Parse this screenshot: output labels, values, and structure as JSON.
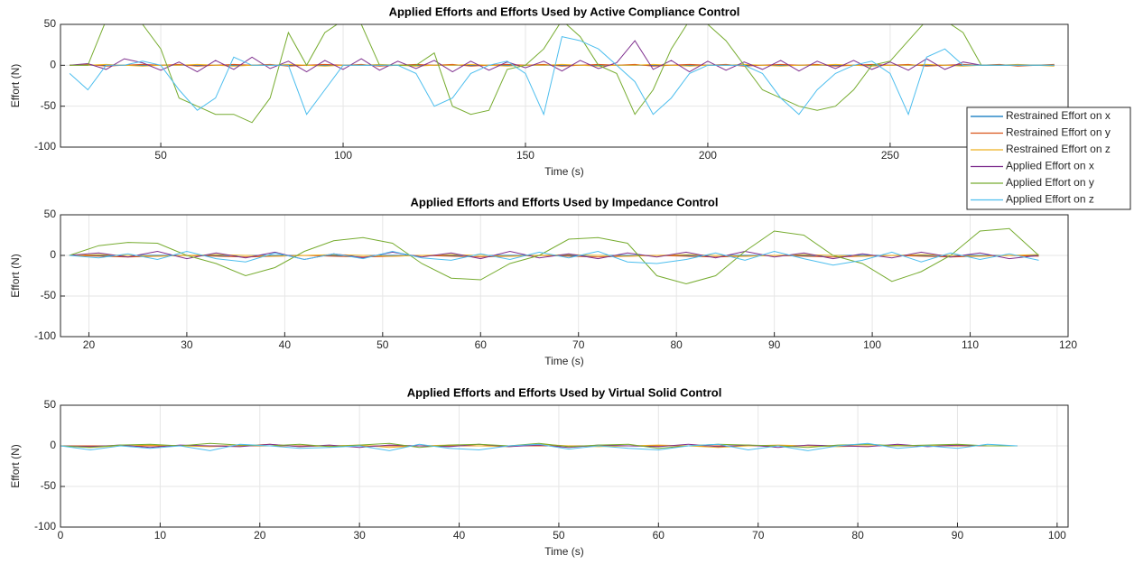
{
  "chart_data": [
    {
      "type": "line",
      "title": "Applied Efforts and Efforts Used by Active Compliance Control",
      "x_label": "Time (s)",
      "y_label": "Effort (N)",
      "xlim": [
        22.5,
        298.8
      ],
      "xticks": [
        50,
        100,
        150,
        200,
        250
      ],
      "ylim": [
        -100,
        50
      ],
      "yticks": [
        -100,
        -50,
        0,
        50
      ],
      "grid": true,
      "legend": "east",
      "x": [
        25,
        30,
        35,
        40,
        45,
        50,
        55,
        60,
        65,
        70,
        75,
        80,
        85,
        90,
        95,
        100,
        105,
        110,
        115,
        120,
        125,
        130,
        135,
        140,
        145,
        150,
        155,
        160,
        165,
        170,
        175,
        180,
        185,
        190,
        195,
        200,
        205,
        210,
        215,
        220,
        225,
        230,
        235,
        240,
        245,
        250,
        255,
        260,
        265,
        270,
        275,
        280,
        285,
        290,
        295
      ],
      "series": [
        {
          "name": "Restrained Effort on x",
          "color": "#0072BD",
          "values": [
            0,
            0,
            0,
            0,
            0,
            0,
            0,
            0,
            0,
            0,
            0,
            0,
            0,
            0,
            0,
            0,
            0,
            0,
            0,
            0,
            0,
            0,
            0,
            0,
            0,
            0,
            0,
            0,
            0,
            0,
            0,
            0,
            0,
            0,
            0,
            0,
            0,
            0,
            0,
            0,
            0,
            0,
            0,
            0,
            0,
            0,
            0,
            0,
            0,
            0,
            0,
            0,
            0,
            0,
            0
          ]
        },
        {
          "name": "Restrained Effort on y",
          "color": "#D95319",
          "values": [
            0,
            1,
            -1,
            0,
            1,
            0,
            1,
            -1,
            0,
            1,
            0,
            1,
            -1,
            0,
            1,
            0,
            1,
            -1,
            0,
            1,
            0,
            1,
            -1,
            0,
            1,
            0,
            1,
            -1,
            0,
            1,
            0,
            1,
            -1,
            0,
            1,
            0,
            1,
            -1,
            0,
            1,
            0,
            1,
            -1,
            0,
            1,
            0,
            1,
            -1,
            0,
            1,
            0,
            1,
            -1,
            0,
            1
          ]
        },
        {
          "name": "Restrained Effort on z",
          "color": "#EDB120",
          "values": [
            0,
            0,
            1,
            0,
            -1,
            0,
            0,
            1,
            0,
            -1,
            0,
            0,
            1,
            0,
            -1,
            0,
            0,
            1,
            0,
            -1,
            0,
            0,
            1,
            0,
            -1,
            0,
            0,
            1,
            0,
            -1,
            0,
            0,
            1,
            0,
            -1,
            0,
            0,
            1,
            0,
            -1,
            0,
            0,
            1,
            0,
            -1,
            0,
            0,
            1,
            0,
            -1,
            0,
            0,
            1,
            0,
            -1
          ]
        },
        {
          "name": "Applied Effort on x",
          "color": "#7E2F8E",
          "values": [
            0,
            2,
            -5,
            8,
            3,
            -6,
            4,
            -8,
            6,
            -5,
            10,
            -4,
            5,
            -8,
            6,
            -5,
            8,
            -6,
            5,
            -4,
            6,
            -8,
            5,
            -6,
            4,
            -3,
            5,
            -7,
            6,
            -4,
            3,
            30,
            -5,
            6,
            -8,
            5,
            -6,
            4,
            -5,
            6,
            -7,
            5,
            -4,
            6,
            -5,
            4,
            -6,
            8,
            -5,
            4,
            0,
            0,
            0,
            0,
            0
          ]
        },
        {
          "name": "Applied Effort on y",
          "color": "#77AC30",
          "values": [
            0,
            0,
            55,
            55,
            50,
            20,
            -40,
            -50,
            -60,
            -60,
            -70,
            -40,
            40,
            0,
            40,
            55,
            50,
            0,
            0,
            0,
            15,
            -50,
            -60,
            -55,
            -5,
            0,
            20,
            55,
            35,
            0,
            -10,
            -60,
            -30,
            20,
            55,
            50,
            30,
            0,
            -30,
            -40,
            -50,
            -55,
            -50,
            -30,
            0,
            5,
            30,
            55,
            55,
            40,
            0,
            0,
            0,
            0,
            0
          ]
        },
        {
          "name": "Applied Effort on z",
          "color": "#4DBEEE",
          "values": [
            -10,
            -30,
            0,
            0,
            5,
            0,
            -30,
            -55,
            -40,
            10,
            0,
            0,
            0,
            -60,
            -30,
            0,
            0,
            0,
            0,
            -10,
            -50,
            -40,
            -10,
            0,
            5,
            -10,
            -60,
            35,
            30,
            20,
            0,
            -20,
            -60,
            -40,
            -10,
            0,
            0,
            0,
            -10,
            -40,
            -60,
            -30,
            -10,
            0,
            5,
            -10,
            -60,
            10,
            20,
            0,
            0,
            0,
            0,
            0,
            0
          ]
        }
      ]
    },
    {
      "type": "line",
      "title": "Applied Efforts and Efforts Used by Impedance Control",
      "x_label": "Time (s)",
      "y_label": "Effort (N)",
      "xlim": [
        17.1,
        120
      ],
      "xticks": [
        20,
        30,
        40,
        50,
        60,
        70,
        80,
        90,
        100,
        110,
        120
      ],
      "ylim": [
        -100,
        50
      ],
      "yticks": [
        -100,
        -50,
        0,
        50
      ],
      "grid": true,
      "x": [
        18,
        21,
        24,
        27,
        30,
        33,
        36,
        39,
        42,
        45,
        48,
        51,
        54,
        57,
        60,
        63,
        66,
        69,
        72,
        75,
        78,
        81,
        84,
        87,
        90,
        93,
        96,
        99,
        102,
        105,
        108,
        111,
        114,
        117
      ],
      "series": [
        {
          "color": "#0072BD",
          "values": [
            0,
            0,
            0,
            0,
            0,
            0,
            0,
            0,
            0,
            0,
            0,
            0,
            0,
            0,
            0,
            0,
            0,
            0,
            0,
            0,
            0,
            0,
            0,
            0,
            0,
            0,
            0,
            0,
            0,
            0,
            0,
            0,
            0,
            0
          ]
        },
        {
          "color": "#D95319",
          "values": [
            0,
            -1,
            -2,
            -1,
            0,
            -1,
            -2,
            -1,
            0,
            -1,
            -2,
            -1,
            0,
            -1,
            -2,
            -1,
            0,
            -1,
            -2,
            -1,
            0,
            -1,
            -2,
            -1,
            0,
            -1,
            -2,
            -1,
            0,
            -1,
            -2,
            -1,
            0,
            -1
          ]
        },
        {
          "color": "#EDB120",
          "values": [
            0,
            1,
            0,
            -1,
            0,
            1,
            0,
            -1,
            0,
            1,
            0,
            -1,
            0,
            1,
            0,
            -1,
            0,
            1,
            0,
            -1,
            0,
            1,
            0,
            -1,
            0,
            1,
            0,
            -1,
            0,
            1,
            0,
            -1,
            0,
            1
          ]
        },
        {
          "color": "#7E2F8E",
          "values": [
            0,
            3,
            -2,
            5,
            -4,
            3,
            -3,
            4,
            -5,
            2,
            -3,
            4,
            -2,
            3,
            -4,
            5,
            -3,
            2,
            -4,
            3,
            -2,
            4,
            -3,
            5,
            -2,
            3,
            -4,
            2,
            -3,
            4,
            -2,
            3,
            -4,
            0
          ]
        },
        {
          "color": "#77AC30",
          "values": [
            0,
            12,
            16,
            15,
            0,
            -10,
            -25,
            -15,
            5,
            18,
            22,
            15,
            -10,
            -28,
            -30,
            -10,
            0,
            20,
            22,
            15,
            -25,
            -35,
            -25,
            5,
            30,
            25,
            0,
            -10,
            -32,
            -20,
            0,
            30,
            33,
            0
          ]
        },
        {
          "color": "#4DBEEE",
          "values": [
            0,
            -3,
            2,
            -5,
            5,
            -4,
            -8,
            3,
            -5,
            2,
            -4,
            5,
            -3,
            -6,
            2,
            -5,
            4,
            -3,
            5,
            -8,
            -10,
            -5,
            3,
            -6,
            5,
            -4,
            -12,
            -6,
            4,
            -8,
            3,
            -5,
            2,
            -6
          ]
        }
      ]
    },
    {
      "type": "line",
      "title": "Applied Efforts and Efforts Used by Virtual Solid Control",
      "x_label": "Time (s)",
      "y_label": "Effort (N)",
      "xlim": [
        0,
        101.1
      ],
      "xticks": [
        0,
        10,
        20,
        30,
        40,
        50,
        60,
        70,
        80,
        90,
        100
      ],
      "ylim": [
        -100,
        50
      ],
      "yticks": [
        -100,
        -50,
        0,
        50
      ],
      "grid": true,
      "x": [
        0,
        3,
        6,
        9,
        12,
        15,
        18,
        21,
        24,
        27,
        30,
        33,
        36,
        39,
        42,
        45,
        48,
        51,
        54,
        57,
        60,
        63,
        66,
        69,
        72,
        75,
        78,
        81,
        84,
        87,
        90,
        93,
        96
      ],
      "series": [
        {
          "color": "#0072BD",
          "values": [
            0,
            0,
            0,
            0,
            0,
            0,
            0,
            0,
            0,
            0,
            0,
            0,
            0,
            0,
            0,
            0,
            0,
            0,
            0,
            0,
            0,
            0,
            0,
            0,
            0,
            0,
            0,
            0,
            0,
            0,
            0,
            0,
            0
          ]
        },
        {
          "color": "#D95319",
          "values": [
            0,
            0,
            0,
            0,
            0,
            0,
            0,
            0,
            0,
            0,
            0,
            0,
            0,
            0,
            0,
            0,
            0,
            0,
            0,
            0,
            0,
            0,
            0,
            0,
            0,
            0,
            0,
            0,
            0,
            0,
            0,
            0,
            0
          ]
        },
        {
          "color": "#EDB120",
          "values": [
            0,
            -2,
            0,
            1,
            0,
            -1,
            0,
            2,
            -1,
            0,
            1,
            -2,
            0,
            1,
            0,
            -1,
            2,
            0,
            -1,
            0,
            1,
            0,
            -2,
            0,
            1,
            0,
            -1,
            0,
            1,
            0,
            1,
            0,
            0
          ]
        },
        {
          "color": "#7E2F8E",
          "values": [
            0,
            -1,
            1,
            -2,
            1,
            0,
            -1,
            2,
            -1,
            1,
            -2,
            1,
            0,
            -1,
            2,
            -1,
            1,
            -2,
            1,
            0,
            -1,
            2,
            -1,
            1,
            -2,
            1,
            0,
            -1,
            2,
            -1,
            1,
            0,
            0
          ]
        },
        {
          "color": "#77AC30",
          "values": [
            0,
            -2,
            1,
            2,
            0,
            3,
            1,
            0,
            2,
            -1,
            1,
            3,
            -2,
            1,
            2,
            0,
            3,
            -1,
            1,
            2,
            -3,
            0,
            2,
            1,
            0,
            -2,
            1,
            2,
            0,
            1,
            2,
            0,
            0
          ]
        },
        {
          "color": "#4DBEEE",
          "values": [
            0,
            -5,
            0,
            -3,
            0,
            -6,
            2,
            0,
            -3,
            -2,
            0,
            -6,
            2,
            -3,
            -5,
            0,
            2,
            -4,
            0,
            -3,
            -5,
            0,
            2,
            -5,
            0,
            -6,
            0,
            3,
            -3,
            0,
            -3,
            2,
            0
          ]
        }
      ]
    }
  ]
}
